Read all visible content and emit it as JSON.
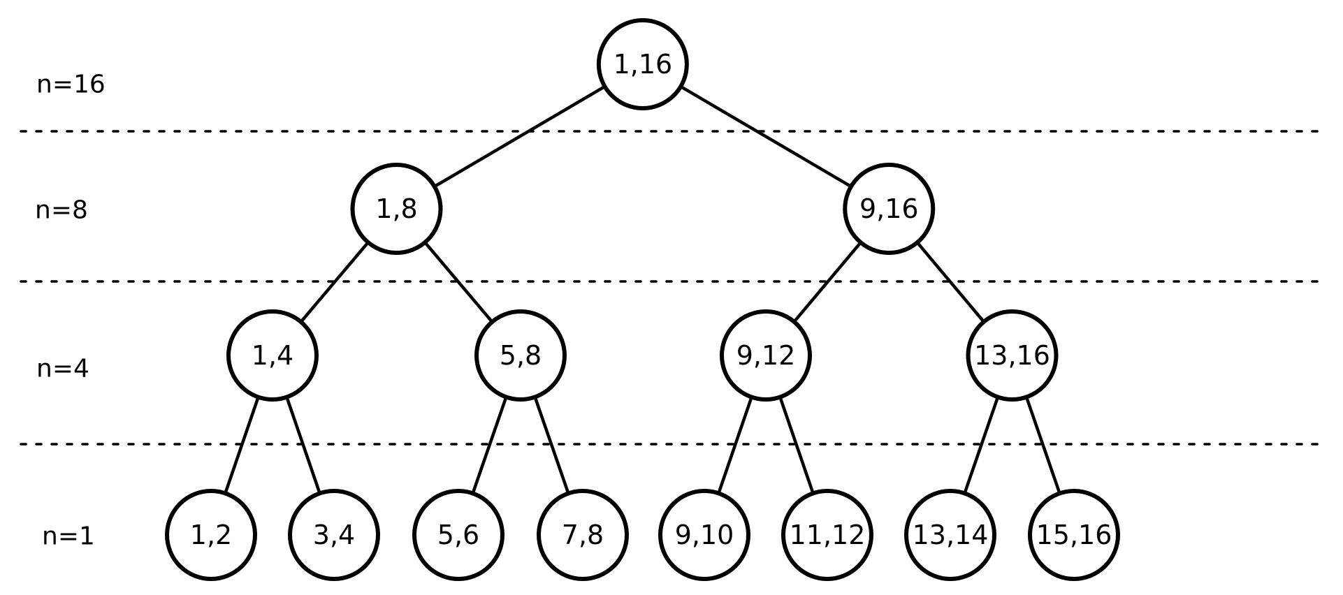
{
  "title": "",
  "style": {
    "stroke_color": "#000000",
    "fill_color": "#ffffff",
    "text_color": "#000000"
  },
  "levels": [
    {
      "id": "n16",
      "label": "n=16"
    },
    {
      "id": "n8",
      "label": "n=8"
    },
    {
      "id": "n4",
      "label": "n=4"
    },
    {
      "id": "n1",
      "label": "n=1"
    }
  ],
  "nodes": [
    {
      "id": "1-16",
      "label": "1,16",
      "level": "n16",
      "parent": null
    },
    {
      "id": "1-8",
      "label": "1,8",
      "level": "n8",
      "parent": "1-16"
    },
    {
      "id": "9-16",
      "label": "9,16",
      "level": "n8",
      "parent": "1-16"
    },
    {
      "id": "1-4",
      "label": "1,4",
      "level": "n4",
      "parent": "1-8"
    },
    {
      "id": "5-8",
      "label": "5,8",
      "level": "n4",
      "parent": "1-8"
    },
    {
      "id": "9-12",
      "label": "9,12",
      "level": "n4",
      "parent": "9-16"
    },
    {
      "id": "13-16",
      "label": "13,16",
      "level": "n4",
      "parent": "9-16"
    },
    {
      "id": "1-2",
      "label": "1,2",
      "level": "n1",
      "parent": "1-4"
    },
    {
      "id": "3-4",
      "label": "3,4",
      "level": "n1",
      "parent": "1-4"
    },
    {
      "id": "5-6",
      "label": "5,6",
      "level": "n1",
      "parent": "5-8"
    },
    {
      "id": "7-8",
      "label": "7,8",
      "level": "n1",
      "parent": "5-8"
    },
    {
      "id": "9-10",
      "label": "9,10",
      "level": "n1",
      "parent": "9-12"
    },
    {
      "id": "11-12",
      "label": "11,12",
      "level": "n1",
      "parent": "9-12"
    },
    {
      "id": "13-14",
      "label": "13,14",
      "level": "n1",
      "parent": "13-16"
    },
    {
      "id": "15-16",
      "label": "15,16",
      "level": "n1",
      "parent": "13-16"
    }
  ]
}
